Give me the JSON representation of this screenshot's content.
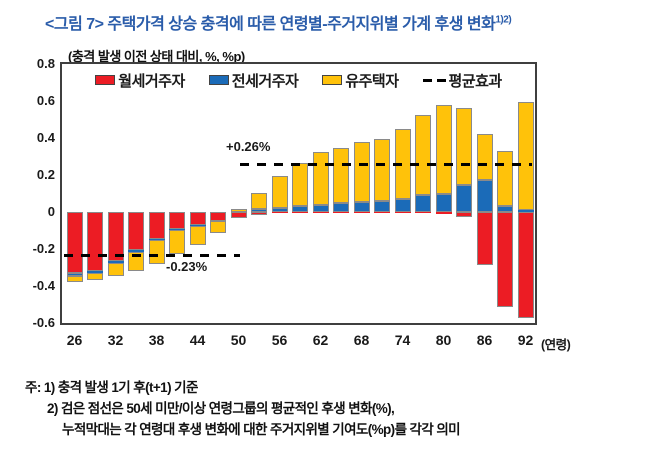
{
  "title": {
    "text": "<그림 7> 주택가격 상승 충격에 따른 연령별-주거지위별 가계 후생 변화",
    "superscript": "1)2)"
  },
  "subtitle": "(충격 발생 이전 상태 대비, %, %p)",
  "legend": [
    {
      "label": "월세거주자",
      "marker": "swatch",
      "color": "#EC1C24"
    },
    {
      "label": "전세거주자",
      "marker": "swatch",
      "color": "#1B6BB8"
    },
    {
      "label": "유주택자",
      "marker": "swatch",
      "color": "#FFC20A"
    },
    {
      "label": "평균효과",
      "marker": "dash",
      "color": "#000000"
    }
  ],
  "chart_data": {
    "type": "bar",
    "stacked": true,
    "x": [
      26,
      29,
      32,
      35,
      38,
      41,
      44,
      47,
      50,
      53,
      56,
      59,
      62,
      65,
      68,
      71,
      74,
      77,
      80,
      83,
      86,
      89,
      92
    ],
    "xtick_labels": [
      "26",
      "32",
      "38",
      "44",
      "50",
      "56",
      "62",
      "68",
      "74",
      "80",
      "86",
      "92"
    ],
    "x_axis_unit": "(연령)",
    "ytick_labels": [
      "0.8",
      "0.6",
      "0.4",
      "0.2",
      "0",
      "-0.2",
      "-0.4",
      "-0.6"
    ],
    "ylim": [
      -0.6,
      0.8
    ],
    "grid": false,
    "legend_position": "top-inside",
    "series": [
      {
        "name": "월세거주자",
        "color": "#EC1C24",
        "values": [
          -0.33,
          -0.317,
          -0.263,
          -0.203,
          -0.144,
          -0.09,
          -0.072,
          -0.047,
          -0.03,
          -0.017,
          -0.008,
          -0.004,
          -0.003,
          -0.002,
          -0.002,
          -0.002,
          -0.002,
          -0.003,
          -0.01,
          -0.025,
          -0.287,
          -0.515,
          -0.575
        ]
      },
      {
        "name": "전세거주자",
        "color": "#1B6BB8",
        "values": [
          -0.018,
          -0.011,
          -0.011,
          -0.013,
          -0.005,
          -0.008,
          -0.006,
          -0.004,
          0.0,
          0.015,
          0.022,
          0.03,
          0.038,
          0.049,
          0.056,
          0.058,
          0.068,
          0.091,
          0.096,
          0.146,
          0.174,
          0.032,
          0.01
        ]
      },
      {
        "name": "유주택자",
        "color": "#FFC20A",
        "values": [
          -0.032,
          -0.039,
          -0.071,
          -0.102,
          -0.13,
          -0.127,
          -0.102,
          -0.062,
          0.015,
          0.09,
          0.17,
          0.237,
          0.288,
          0.298,
          0.324,
          0.334,
          0.383,
          0.435,
          0.483,
          0.416,
          0.245,
          0.3,
          0.582
        ]
      }
    ],
    "average_lines": [
      {
        "label": "-0.23%",
        "value": -0.23,
        "age_range": [
          26,
          47
        ],
        "style": "dashed",
        "color": "#000000"
      },
      {
        "label": "+0.26%",
        "value": 0.26,
        "age_range": [
          53,
          92
        ],
        "style": "dashed",
        "color": "#000000"
      }
    ]
  },
  "notes": {
    "lines": [
      "주: 1) 충격 발생 1기 후(t+1) 기준",
      "2) 검은 점선은 50세 미만/이상 연령그룹의 평균적인 후생 변화(%),",
      "누적막대는 각 연령대 후생 변화에 대한 주거지위별 기여도(%p)를 각각 의미"
    ]
  }
}
